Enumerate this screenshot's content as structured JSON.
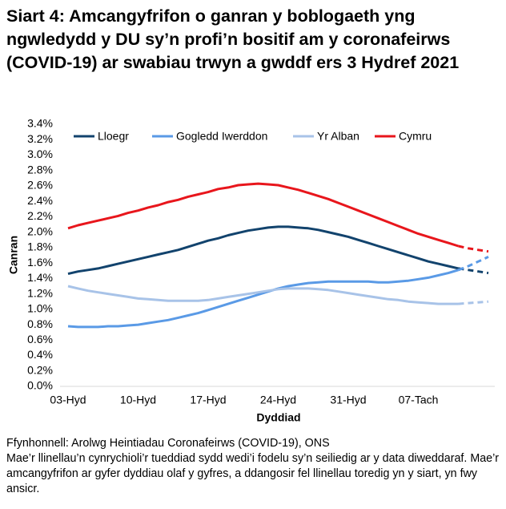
{
  "chart_data": {
    "type": "line",
    "title": "Siart 4: Amcangyfrifon o ganran y boblogaeth yng ngwledydd y DU sy’n profi’n bositif am y coronafeirws (COVID-19) ar swabiau trwyn a gwddf ers 3 Hydref 2021",
    "x_label": "Dyddiad",
    "y_label": "Canran",
    "source": "Ffynhonnell: Arolwg Heintiadau Coronafeirws (COVID-19), ONS",
    "note": "Mae’r llinellau’n cynrychioli’r tueddiad sydd wedi’i fodelu sy’n seiliedig ar y data diweddaraf. Mae’r amcangyfrifon ar gyfer dyddiau olaf y gyfres, a ddangosir fel llinellau toredig yn y siart, yn fwy ansicr.",
    "categories": [
      "03-Hyd",
      null,
      null,
      null,
      null,
      null,
      null,
      "10-Hyd",
      null,
      null,
      null,
      null,
      null,
      null,
      "17-Hyd",
      null,
      null,
      null,
      null,
      null,
      null,
      "24-Hyd",
      null,
      null,
      null,
      null,
      null,
      null,
      "31-Hyd",
      null,
      null,
      null,
      null,
      null,
      null,
      "07-Tach",
      null,
      null,
      null,
      null,
      null,
      null,
      null
    ],
    "dash_start": 39,
    "ylim": [
      0,
      3.4
    ],
    "yticks": [
      {
        "value": 0,
        "label": "0.0%"
      },
      {
        "value": 0.2,
        "label": "0.2%"
      },
      {
        "value": 0.4,
        "label": "0.4%"
      },
      {
        "value": 0.6,
        "label": "0.6%"
      },
      {
        "value": 0.8,
        "label": "0.8%"
      },
      {
        "value": 1.0,
        "label": "1.0%"
      },
      {
        "value": 1.2,
        "label": "1.2%"
      },
      {
        "value": 1.4,
        "label": "1.4%"
      },
      {
        "value": 1.6,
        "label": "1.6%"
      },
      {
        "value": 1.8,
        "label": "1.8%"
      },
      {
        "value": 2.0,
        "label": "2.0%"
      },
      {
        "value": 2.2,
        "label": "2.2%"
      },
      {
        "value": 2.4,
        "label": "2.4%"
      },
      {
        "value": 2.6,
        "label": "2.6%"
      },
      {
        "value": 2.8,
        "label": "2.8%"
      },
      {
        "value": 3.0,
        "label": "3.0%"
      },
      {
        "value": 3.2,
        "label": "3.2%"
      },
      {
        "value": 3.4,
        "label": "3.4%"
      }
    ],
    "series": [
      {
        "name": "Lloegr",
        "color": "#12436d",
        "values": [
          1.46,
          1.49,
          1.51,
          1.53,
          1.56,
          1.59,
          1.62,
          1.65,
          1.68,
          1.71,
          1.74,
          1.77,
          1.81,
          1.85,
          1.89,
          1.92,
          1.96,
          1.99,
          2.02,
          2.04,
          2.06,
          2.07,
          2.07,
          2.06,
          2.05,
          2.03,
          2.0,
          1.97,
          1.94,
          1.9,
          1.86,
          1.82,
          1.78,
          1.74,
          1.7,
          1.66,
          1.62,
          1.59,
          1.56,
          1.53,
          1.51,
          1.49,
          1.47
        ]
      },
      {
        "name": "Gogledd Iwerddon",
        "color": "#5a9ae6",
        "values": [
          0.78,
          0.77,
          0.77,
          0.77,
          0.78,
          0.78,
          0.79,
          0.8,
          0.82,
          0.84,
          0.86,
          0.89,
          0.92,
          0.95,
          0.99,
          1.03,
          1.07,
          1.11,
          1.15,
          1.19,
          1.23,
          1.27,
          1.3,
          1.32,
          1.34,
          1.35,
          1.36,
          1.36,
          1.36,
          1.36,
          1.36,
          1.35,
          1.35,
          1.36,
          1.37,
          1.39,
          1.41,
          1.44,
          1.47,
          1.51,
          1.56,
          1.62,
          1.68
        ]
      },
      {
        "name": "Yr Alban",
        "color": "#a8c3e8",
        "values": [
          1.3,
          1.27,
          1.24,
          1.22,
          1.2,
          1.18,
          1.16,
          1.14,
          1.13,
          1.12,
          1.11,
          1.11,
          1.11,
          1.11,
          1.12,
          1.14,
          1.16,
          1.18,
          1.2,
          1.22,
          1.24,
          1.26,
          1.27,
          1.27,
          1.27,
          1.26,
          1.25,
          1.23,
          1.21,
          1.19,
          1.17,
          1.15,
          1.13,
          1.12,
          1.1,
          1.09,
          1.08,
          1.07,
          1.07,
          1.07,
          1.08,
          1.09,
          1.1
        ]
      },
      {
        "name": "Cymru",
        "color": "#e8161c",
        "values": [
          2.05,
          2.09,
          2.12,
          2.15,
          2.18,
          2.21,
          2.25,
          2.28,
          2.32,
          2.35,
          2.39,
          2.42,
          2.46,
          2.49,
          2.52,
          2.56,
          2.58,
          2.61,
          2.62,
          2.63,
          2.62,
          2.61,
          2.58,
          2.55,
          2.51,
          2.47,
          2.43,
          2.38,
          2.33,
          2.28,
          2.23,
          2.18,
          2.13,
          2.08,
          2.03,
          1.98,
          1.94,
          1.9,
          1.86,
          1.82,
          1.79,
          1.77,
          1.75
        ]
      }
    ]
  }
}
